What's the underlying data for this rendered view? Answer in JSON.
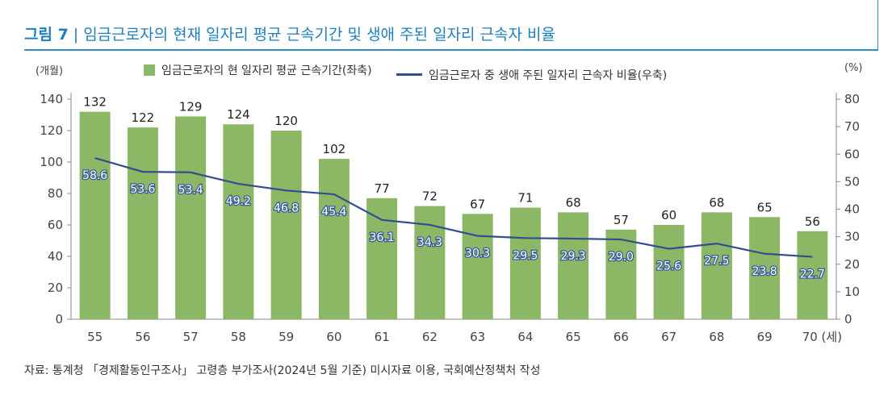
{
  "figure": {
    "number": "그림 7",
    "separator": "|",
    "title": "임금근로자의 현재 일자리 평균 근속기간 및 생애 주된 일자리 근속자 비율"
  },
  "colors": {
    "bar": "#8cb865",
    "line": "#2f4f8f",
    "accent": "#1e7fbf"
  },
  "chart_data": {
    "type": "bar",
    "left_unit": "(개월)",
    "right_unit": "(%)",
    "x_unit": "(세)",
    "categories": [
      "55",
      "56",
      "57",
      "58",
      "59",
      "60",
      "61",
      "62",
      "63",
      "64",
      "65",
      "66",
      "67",
      "68",
      "69",
      "70"
    ],
    "series": [
      {
        "name": "임금근로자의 현 일자리 평균 근속기간(좌축)",
        "kind": "bar",
        "axis": "left",
        "values": [
          132,
          122,
          129,
          124,
          120,
          102,
          77,
          72,
          67,
          71,
          68,
          57,
          60,
          68,
          65,
          56
        ]
      },
      {
        "name": "임금근로자 중 생애 주된 일자리 근속자 비율(우축)",
        "kind": "line",
        "axis": "right",
        "values": [
          58.6,
          53.6,
          53.4,
          49.2,
          46.8,
          45.4,
          36.1,
          34.3,
          30.3,
          29.5,
          29.3,
          29.0,
          25.6,
          27.5,
          23.8,
          22.7
        ]
      }
    ],
    "ylim_left": [
      0,
      140
    ],
    "yticks_left": [
      0,
      20,
      40,
      60,
      80,
      100,
      120,
      140
    ],
    "ylim_right": [
      0,
      80
    ],
    "yticks_right": [
      0,
      10,
      20,
      30,
      40,
      50,
      60,
      70,
      80
    ],
    "legend_position": "top",
    "grid": false
  },
  "source": "자료: 통계청 「경제활동인구조사」 고령층 부가조사(2024년 5월 기준) 미시자료 이용, 국회예산정책처 작성"
}
